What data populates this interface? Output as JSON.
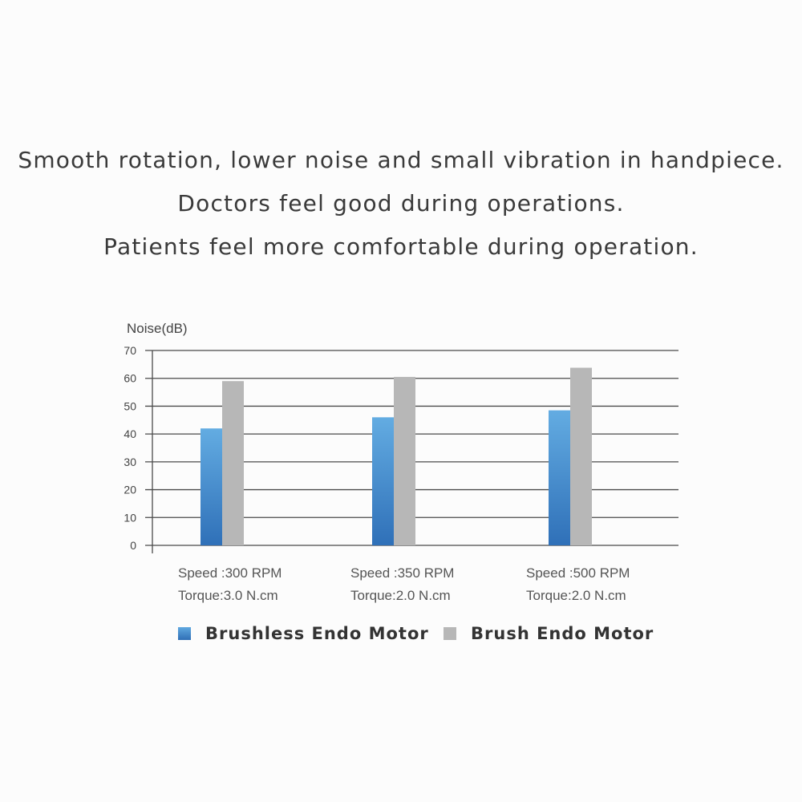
{
  "headline": {
    "line1": "Smooth rotation, lower noise and small vibration in handpiece.",
    "line2": "Doctors feel good during operations.",
    "line3": "Patients feel more comfortable during operation."
  },
  "chart_data": {
    "type": "bar",
    "ylabel": "Noise(dB)",
    "ylim": [
      0,
      70
    ],
    "yticks": [
      0,
      10,
      20,
      30,
      40,
      50,
      60,
      70
    ],
    "grid": true,
    "legend_placement": "bottom",
    "categories": [
      [
        "Speed :300 RPM",
        "Torque:3.0 N.cm"
      ],
      [
        "Speed :350 RPM",
        "Torque:2.0 N.cm"
      ],
      [
        "Speed :500 RPM",
        "Torque:2.0 N.cm"
      ]
    ],
    "series": [
      {
        "name": "Brushless Endo Motor",
        "values": [
          42,
          46,
          48.5
        ],
        "color": "#4a90d6"
      },
      {
        "name": "Brush Endo Motor",
        "values": [
          59,
          60.5,
          63.8
        ],
        "color": "#b7b7b7"
      }
    ]
  }
}
